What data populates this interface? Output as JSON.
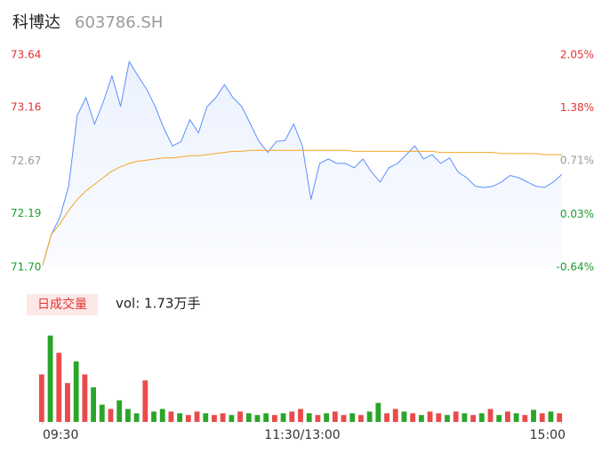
{
  "header": {
    "name": "科博达",
    "code": "603786.SH"
  },
  "chart_data": [
    {
      "type": "line",
      "series": [
        {
          "color": "#5b8ff9",
          "values": [
            71.72,
            72.0,
            72.16,
            72.44,
            73.09,
            73.25,
            73.01,
            73.21,
            73.45,
            73.17,
            73.58,
            73.45,
            73.33,
            73.17,
            72.97,
            72.81,
            72.85,
            73.05,
            72.93,
            73.17,
            73.25,
            73.37,
            73.25,
            73.17,
            73.01,
            72.85,
            72.75,
            72.85,
            72.86,
            73.01,
            72.81,
            72.32,
            72.65,
            72.69,
            72.65,
            72.65,
            72.61,
            72.69,
            72.57,
            72.48,
            72.61,
            72.65,
            72.73,
            72.81,
            72.69,
            72.73,
            72.65,
            72.7,
            72.57,
            72.52,
            72.44,
            72.43,
            72.44,
            72.48,
            72.54,
            72.52,
            72.48,
            72.44,
            72.43,
            72.48,
            72.55
          ]
        },
        {
          "color": "#f5a623",
          "values": [
            71.72,
            72.0,
            72.1,
            72.22,
            72.32,
            72.4,
            72.46,
            72.52,
            72.58,
            72.62,
            72.65,
            72.67,
            72.68,
            72.69,
            72.7,
            72.7,
            72.71,
            72.72,
            72.72,
            72.73,
            72.74,
            72.75,
            72.76,
            72.76,
            72.77,
            72.77,
            72.77,
            72.77,
            72.77,
            72.77,
            72.77,
            72.77,
            72.77,
            72.77,
            72.77,
            72.77,
            72.76,
            72.76,
            72.76,
            72.76,
            72.76,
            72.76,
            72.76,
            72.76,
            72.76,
            72.76,
            72.75,
            72.75,
            72.75,
            72.75,
            72.75,
            72.75,
            72.75,
            72.74,
            72.74,
            72.74,
            72.74,
            72.74,
            72.73,
            72.73,
            72.73
          ]
        }
      ],
      "area": true,
      "xlim": [
        0,
        60
      ],
      "xticks": [
        {
          "value": 0,
          "label": "09:30"
        },
        {
          "value": 30,
          "label": "11:30/13:00"
        },
        {
          "value": 60,
          "label": "15:00"
        }
      ],
      "ylim": [
        71.7,
        73.64
      ],
      "yticks": [
        {
          "value": 71.7,
          "label": "71.70"
        },
        72.19,
        72.67,
        73.16,
        73.64
      ],
      "y2lim": [
        -0.64,
        2.05
      ],
      "y2ticks": [
        {
          "value": -0.64,
          "label": "-0.64%"
        },
        {
          "value": 0.03,
          "label": "0.03%"
        },
        {
          "value": 0.71,
          "label": "0.71%"
        },
        {
          "value": 1.38,
          "label": "1.38%"
        },
        {
          "value": 2.05,
          "label": "2.05%"
        }
      ],
      "tick_colors": [
        "#1a9e2a",
        "#1a9e2a",
        "#999999",
        "#e33333",
        "#e33333"
      ]
    },
    {
      "type": "bar",
      "title": "日成交量",
      "subtitle": "vol: 1.73万手",
      "ylim": [
        0,
        110
      ],
      "values": [
        55,
        100,
        80,
        45,
        70,
        55,
        40,
        20,
        15,
        25,
        15,
        10,
        48,
        12,
        15,
        12,
        10,
        8,
        12,
        10,
        8,
        10,
        8,
        12,
        10,
        8,
        10,
        8,
        10,
        12,
        15,
        10,
        8,
        10,
        12,
        8,
        10,
        8,
        12,
        22,
        10,
        15,
        12,
        10,
        8,
        12,
        10,
        8,
        12,
        10,
        8,
        10,
        15,
        8,
        12,
        10,
        8,
        14,
        10,
        12,
        10
      ],
      "colors": [
        "#e94b4b",
        "#2aa52a",
        "#e94b4b",
        "#e94b4b",
        "#2aa52a",
        "#e94b4b",
        "#2aa52a",
        "#2aa52a",
        "#e94b4b",
        "#2aa52a",
        "#2aa52a",
        "#2aa52a",
        "#e94b4b",
        "#2aa52a",
        "#2aa52a",
        "#e94b4b",
        "#2aa52a",
        "#e94b4b",
        "#e94b4b",
        "#2aa52a",
        "#e94b4b",
        "#e94b4b",
        "#2aa52a",
        "#e94b4b",
        "#2aa52a",
        "#2aa52a",
        "#2aa52a",
        "#e94b4b",
        "#2aa52a",
        "#e94b4b",
        "#e94b4b",
        "#2aa52a",
        "#e94b4b",
        "#2aa52a",
        "#e94b4b",
        "#e94b4b",
        "#2aa52a",
        "#e94b4b",
        "#2aa52a",
        "#2aa52a",
        "#e94b4b",
        "#e94b4b",
        "#2aa52a",
        "#e94b4b",
        "#2aa52a",
        "#e94b4b",
        "#e94b4b",
        "#2aa52a",
        "#e94b4b",
        "#2aa52a",
        "#e94b4b",
        "#2aa52a",
        "#e94b4b",
        "#2aa52a",
        "#e94b4b",
        "#2aa52a",
        "#e94b4b",
        "#2aa52a",
        "#e94b4b",
        "#2aa52a",
        "#e94b4b"
      ]
    }
  ]
}
